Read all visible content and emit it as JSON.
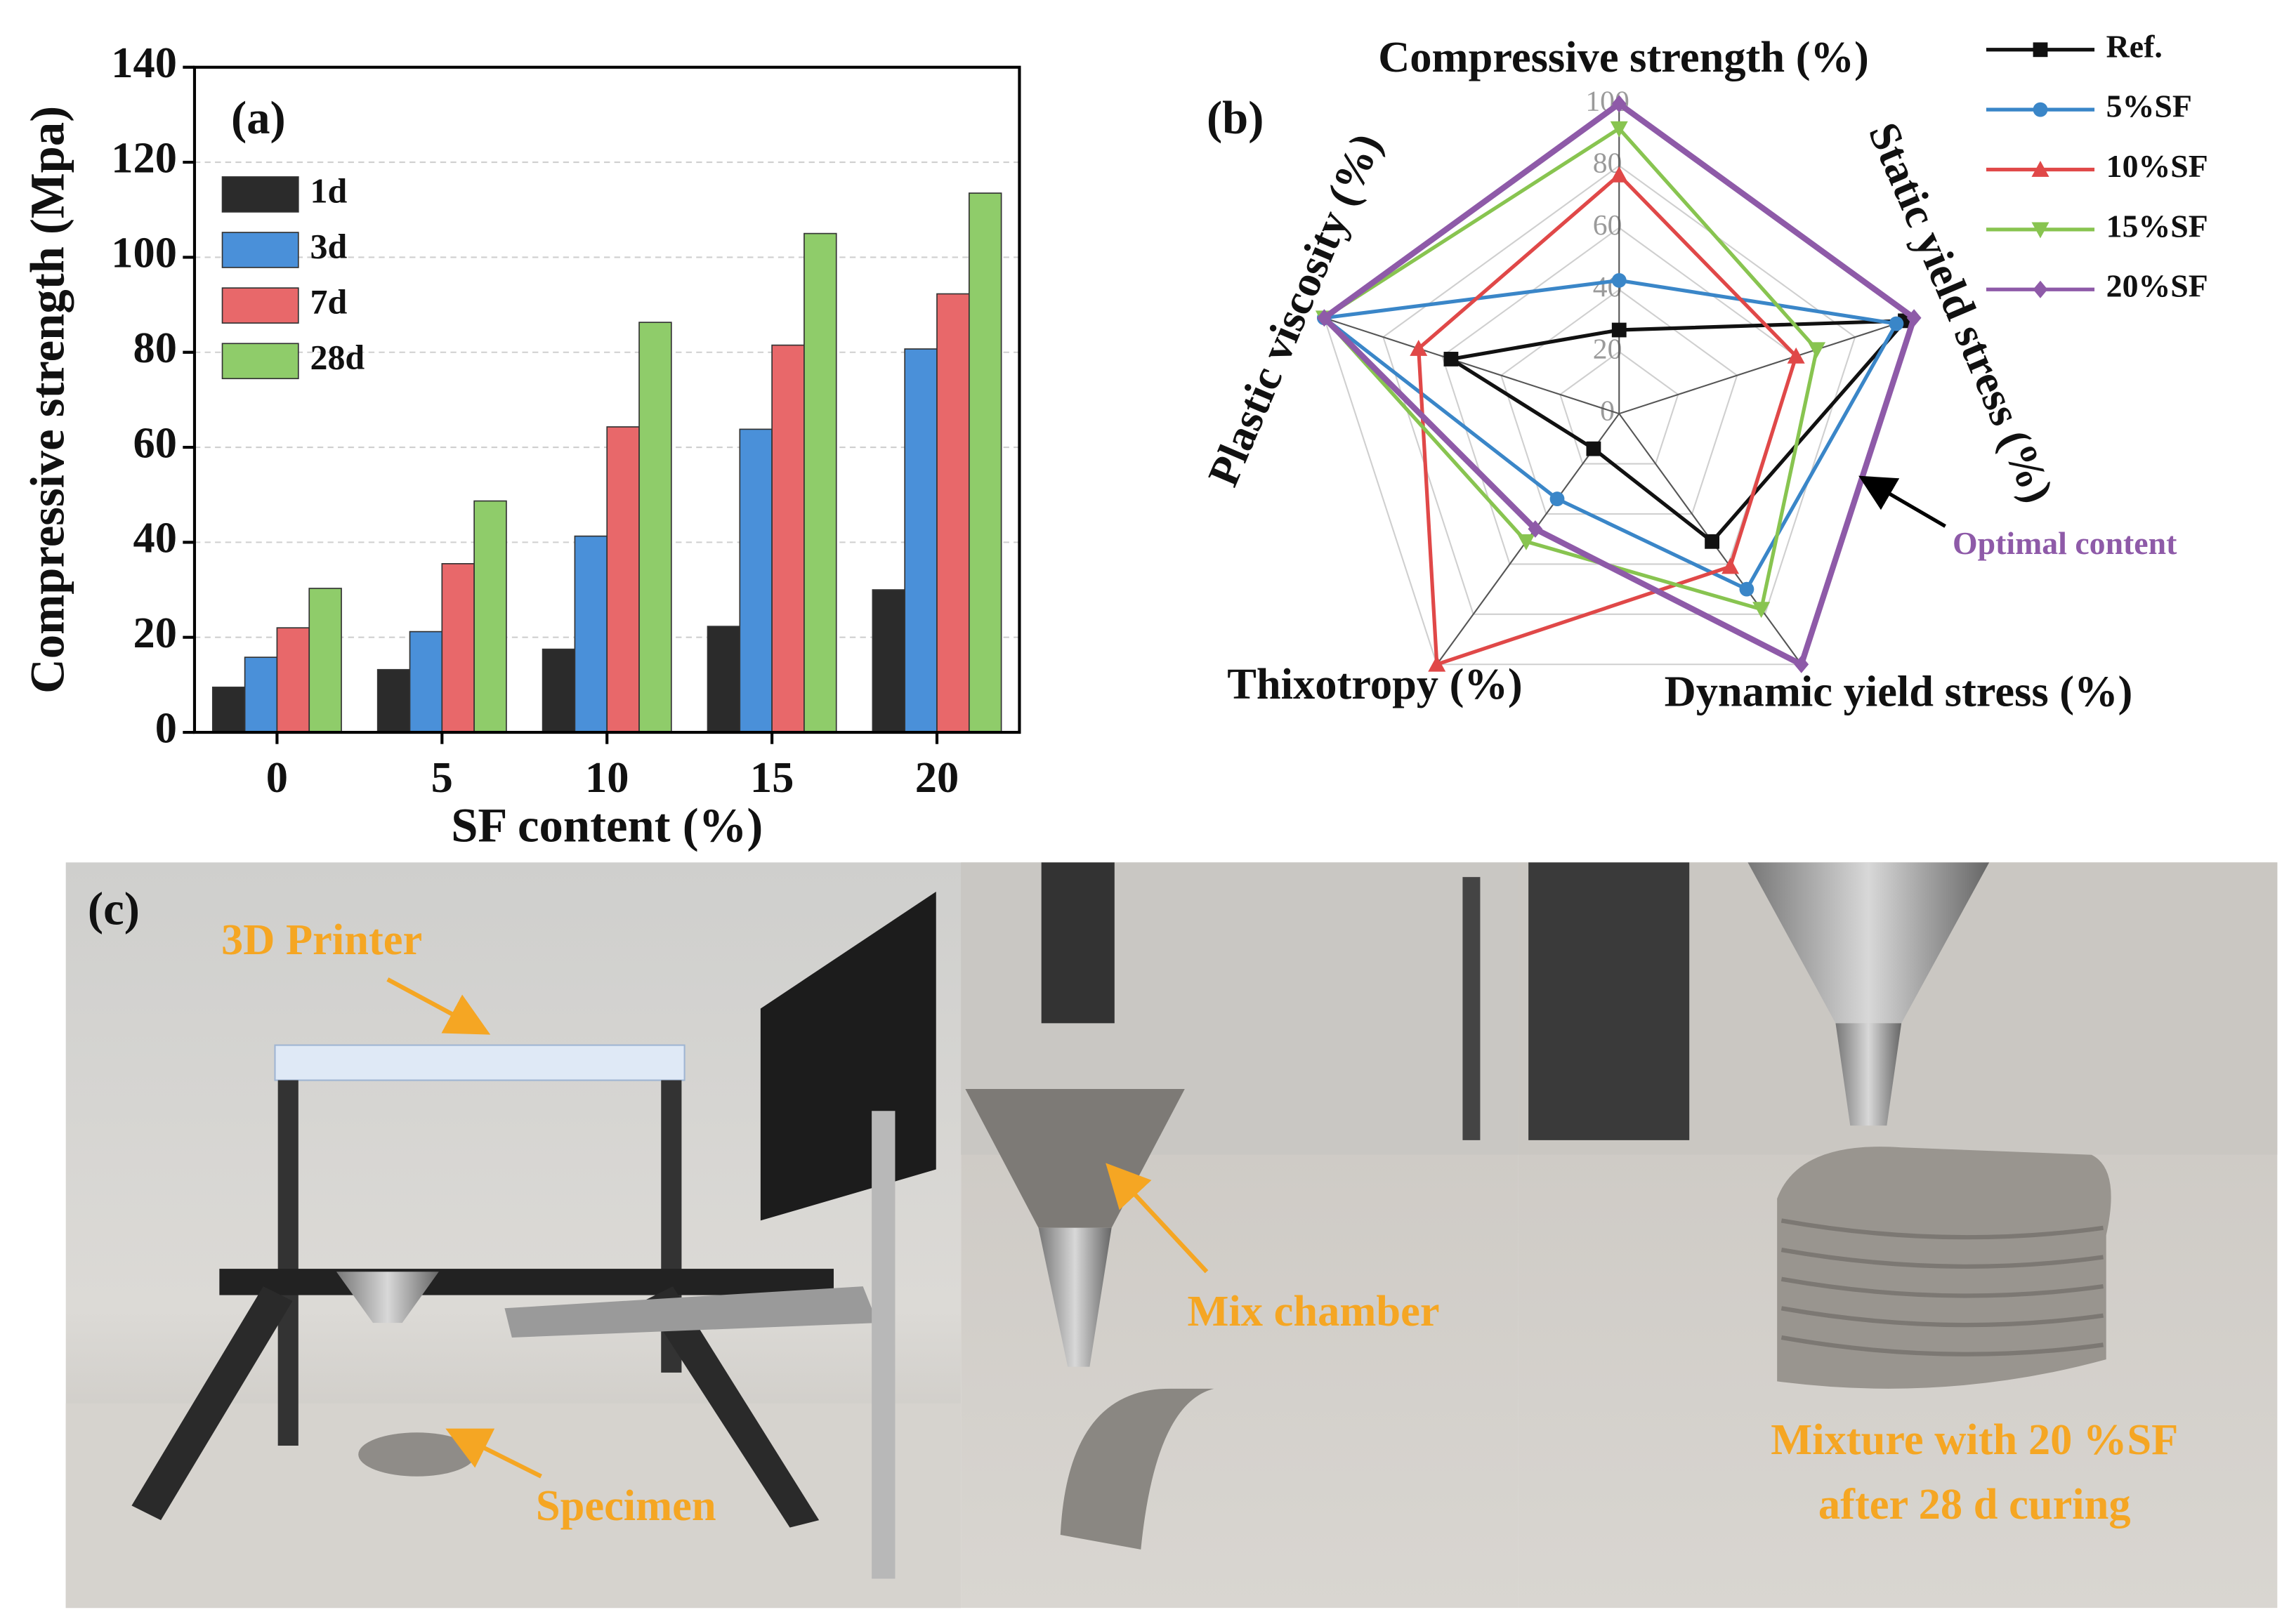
{
  "chart_data": [
    {
      "type": "bar",
      "panel_label": "(a)",
      "xlabel": "SF content (%)",
      "ylabel": "Compressive strength (Mpa)",
      "categories": [
        "0",
        "5",
        "10",
        "15",
        "20"
      ],
      "series": [
        {
          "name": "1d",
          "color": "#2b2b2b",
          "values": [
            9.5,
            13.2,
            17.5,
            22.3,
            30
          ]
        },
        {
          "name": "3d",
          "color": "#4a90d9",
          "values": [
            15.8,
            21.2,
            41.3,
            63.8,
            80.7
          ]
        },
        {
          "name": "7d",
          "color": "#e8686a",
          "values": [
            22,
            35.5,
            64.3,
            81.5,
            92.3
          ]
        },
        {
          "name": "28d",
          "color": "#8fcc6a",
          "values": [
            30.3,
            48.7,
            86.3,
            105,
            113.5
          ]
        }
      ],
      "ylim": [
        0,
        140
      ],
      "yticks": [
        0,
        20,
        40,
        60,
        80,
        100,
        120,
        140
      ],
      "grid": true,
      "legend": "upper left"
    },
    {
      "type": "radar",
      "panel_label": "(b)",
      "categories": [
        "Compressive strength (%)",
        "Static yield stress (%)",
        "Dynamic yield stress (%)",
        "Thixotropy (%)",
        "Plastic viscosity (%)"
      ],
      "series": [
        {
          "name": "Ref.",
          "color": "#111111",
          "marker": "square",
          "values": [
            27,
            97,
            51,
            14,
            57
          ]
        },
        {
          "name": "5%SF",
          "color": "#3a86c8",
          "marker": "circle",
          "values": [
            43,
            94,
            70,
            34,
            100
          ]
        },
        {
          "name": "10%SF",
          "color": "#e04848",
          "marker": "triangle-up",
          "values": [
            77,
            60,
            61,
            100,
            68
          ]
        },
        {
          "name": "15%SF",
          "color": "#88c450",
          "marker": "triangle-down",
          "values": [
            92,
            67,
            78,
            51,
            100
          ]
        },
        {
          "name": "20%SF",
          "color": "#8e5aa8",
          "marker": "diamond",
          "values": [
            100,
            100,
            100,
            46,
            100
          ]
        }
      ],
      "rlim": [
        0,
        100
      ],
      "rticks": [
        0,
        20,
        40,
        60,
        80,
        100
      ],
      "grid": true,
      "legend": "upper right",
      "annotation": "Optimal content",
      "annotation_color": "#8e5aa8"
    }
  ],
  "photos": {
    "panel_label": "(c)",
    "labels": [
      "3D Printer",
      "Specimen",
      "Mix chamber",
      "Mixture with 20 %SF",
      "after 28 d curing"
    ]
  }
}
